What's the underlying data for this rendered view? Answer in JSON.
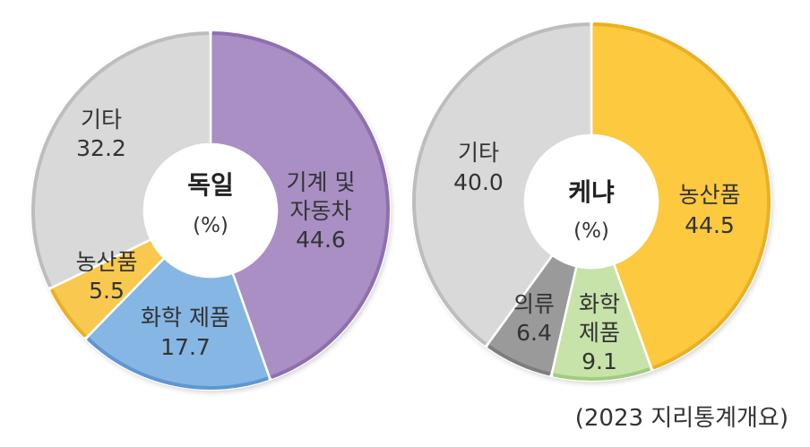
{
  "chart_data": [
    {
      "type": "pie",
      "variant": "donut",
      "title": "독일",
      "unit": "(%)",
      "slices": [
        {
          "name_lines": [
            "기계 및",
            "자동차"
          ],
          "value": 44.6,
          "value_label": "44.6",
          "color": "#A98FC4",
          "edge": "#8E6FB0"
        },
        {
          "name_lines": [
            "화학 제품"
          ],
          "value": 17.7,
          "value_label": "17.7",
          "color": "#86B6E4",
          "edge": "#5E97D2"
        },
        {
          "name_lines": [
            "농산품"
          ],
          "value": 5.5,
          "value_label": "5.5",
          "color": "#F8C94E",
          "edge": "#E8B126"
        },
        {
          "name_lines": [
            "기타"
          ],
          "value": 32.2,
          "value_label": "32.2",
          "color": "#D9D9D9",
          "edge": "#BDBDBD"
        }
      ]
    },
    {
      "type": "pie",
      "variant": "donut",
      "title": "케냐",
      "unit": "(%)",
      "slices": [
        {
          "name_lines": [
            "농산품"
          ],
          "value": 44.5,
          "value_label": "44.5",
          "color": "#FCC93F",
          "edge": "#EBB022"
        },
        {
          "name_lines": [
            "화학",
            "제품"
          ],
          "value": 9.1,
          "value_label": "9.1",
          "color": "#C8E3AA",
          "edge": "#A3CC7E"
        },
        {
          "name_lines": [
            "의류"
          ],
          "value": 6.4,
          "value_label": "6.4",
          "color": "#9A9A9A",
          "edge": "#7E7E7E"
        },
        {
          "name_lines": [
            "기타"
          ],
          "value": 40.0,
          "value_label": "40.0",
          "color": "#D9D9D9",
          "edge": "#BDBDBD"
        }
      ]
    }
  ],
  "source": "(2023 지리통계개요)"
}
